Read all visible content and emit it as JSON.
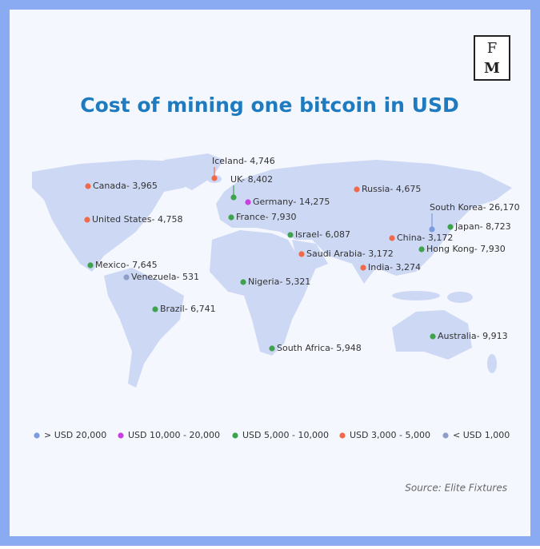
{
  "logo": {
    "top": "F",
    "bottom": "M"
  },
  "title": "Cost of mining one bitcoin in USD",
  "markers": [
    {
      "label": "Iceland- 4,746",
      "color": "#f06a4a"
    },
    {
      "label": "UK- 8,402",
      "color": "#3fa34d"
    },
    {
      "label": "Germany- 14,275",
      "color": "#c93fe0"
    },
    {
      "label": "Canada- 3,965",
      "color": "#f06a4a"
    },
    {
      "label": "Russia- 4,675",
      "color": "#f06a4a"
    },
    {
      "label": "United States- 4,758",
      "color": "#f06a4a"
    },
    {
      "label": "France- 7,930",
      "color": "#3fa34d"
    },
    {
      "label": "South Korea- 26,170",
      "color": "#7b9be0"
    },
    {
      "label": "Japan- 8,723",
      "color": "#3fa34d"
    },
    {
      "label": "China- 3,172",
      "color": "#f06a4a"
    },
    {
      "label": "Israel- 6,087",
      "color": "#3fa34d"
    },
    {
      "label": "Saudi Arabia- 3,172",
      "color": "#f06a4a"
    },
    {
      "label": "Hong Kong- 7,930",
      "color": "#3fa34d"
    },
    {
      "label": "India- 3,274",
      "color": "#f06a4a"
    },
    {
      "label": "Mexico- 7,645",
      "color": "#3fa34d"
    },
    {
      "label": "Venezuela- 531",
      "color": "#8f9ec9"
    },
    {
      "label": "Nigeria- 5,321",
      "color": "#3fa34d"
    },
    {
      "label": "Brazil- 6,741",
      "color": "#3fa34d"
    },
    {
      "label": "Australia- 9,913",
      "color": "#3fa34d"
    },
    {
      "label": "South Africa- 5,948",
      "color": "#3fa34d"
    }
  ],
  "legend": [
    {
      "label": "> USD 20,000",
      "color": "#7b9be0"
    },
    {
      "label": "USD 10,000 - 20,000",
      "color": "#c93fe0"
    },
    {
      "label": "USD 5,000 - 10,000",
      "color": "#3fa34d"
    },
    {
      "label": "USD 3,000 - 5,000",
      "color": "#f06a4a"
    },
    {
      "label": "< USD 1,000",
      "color": "#8f9ec9"
    }
  ],
  "source": "Source: Elite Fixtures"
}
